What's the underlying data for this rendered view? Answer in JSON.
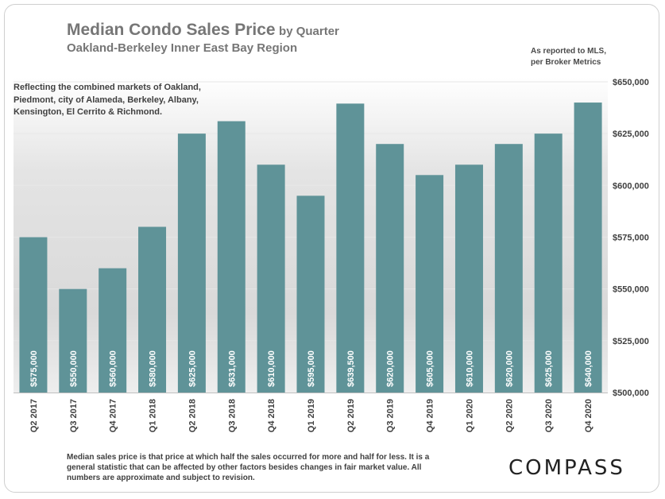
{
  "header": {
    "title_main": "Median Condo Sales Price",
    "title_suffix": "by Quarter",
    "subtitle": "Oakland-Berkeley Inner East Bay Region",
    "source_line1": "As reported to MLS,",
    "source_line2": "per Broker Metrics"
  },
  "note": "Reflecting the combined markets of Oakland, Piedmont, city of Alameda, Berkeley, Albany, Kensington, El Cerrito & Richmond.",
  "footnote": "Median sales price is that price at which half the sales occurred for more and half for less. It is a general statistic that can be affected by other factors besides changes in fair market value. All numbers are approximate and subject to revision.",
  "logo": "COMPASS",
  "colors": {
    "bar": "#5f9398",
    "bar_label": "#ffffff",
    "axis_text": "#404040",
    "grid": "#e6e6e6"
  },
  "chart_data": {
    "type": "bar",
    "title": "Median Condo Sales Price by Quarter",
    "categories": [
      "Q2 2017",
      "Q3 2017",
      "Q4 2017",
      "Q1 2018",
      "Q2 2018",
      "Q3 2018",
      "Q4 2018",
      "Q1 2019",
      "Q2 2019",
      "Q3 2019",
      "Q4 2019",
      "Q1 2020",
      "Q2 2020",
      "Q3 2020",
      "Q4 2020"
    ],
    "values": [
      575000,
      550000,
      560000,
      580000,
      625000,
      631000,
      610000,
      595000,
      639500,
      620000,
      605000,
      610000,
      620000,
      625000,
      640000
    ],
    "data_labels": [
      "$575,000",
      "$550,000",
      "$560,000",
      "$580,000",
      "$625,000",
      "$631,000",
      "$610,000",
      "$595,000",
      "$639,500",
      "$620,000",
      "$605,000",
      "$610,000",
      "$620,000",
      "$625,000",
      "$640,000"
    ],
    "ylim": [
      500000,
      650000
    ],
    "yticks": [
      500000,
      525000,
      550000,
      575000,
      600000,
      625000,
      650000
    ],
    "ytick_labels": [
      "$500,000",
      "$525,000",
      "$550,000",
      "$575,000",
      "$600,000",
      "$625,000",
      "$650,000"
    ],
    "y_axis_position": "right",
    "grid": true,
    "xlabel": "",
    "ylabel": ""
  }
}
